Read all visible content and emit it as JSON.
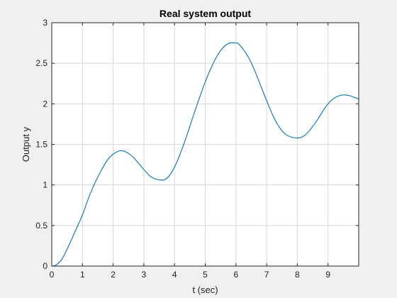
{
  "chart_data": {
    "type": "line",
    "title": "Real system output",
    "xlabel": "t (sec)",
    "ylabel": "Output y",
    "xlim": [
      0,
      10
    ],
    "ylim": [
      0,
      3
    ],
    "xticks": [
      0,
      1,
      2,
      3,
      4,
      5,
      6,
      7,
      8,
      9
    ],
    "yticks": [
      0,
      0.5,
      1,
      1.5,
      2,
      2.5,
      3
    ],
    "grid": true,
    "color": "#0072BD",
    "series": [
      {
        "x": [
          0,
          0.1,
          0.2,
          0.3,
          0.4,
          0.6,
          0.8,
          1.0,
          1.2,
          1.4,
          1.6,
          1.8,
          2.0,
          2.2,
          2.3,
          2.4,
          2.6,
          2.8,
          3.0,
          3.2,
          3.4,
          3.6,
          3.65,
          3.8,
          4.0,
          4.2,
          4.4,
          4.6,
          4.8,
          5.0,
          5.2,
          5.4,
          5.6,
          5.8,
          6.0,
          6.05,
          6.2,
          6.4,
          6.6,
          6.8,
          7.0,
          7.2,
          7.4,
          7.6,
          7.8,
          8.0,
          8.15,
          8.3,
          8.5,
          8.7,
          8.9,
          9.1,
          9.3,
          9.5,
          9.7,
          9.85,
          10.0
        ],
        "y": [
          0,
          0.005,
          0.03,
          0.07,
          0.13,
          0.29,
          0.46,
          0.63,
          0.84,
          1.02,
          1.17,
          1.3,
          1.38,
          1.42,
          1.42,
          1.41,
          1.36,
          1.28,
          1.19,
          1.11,
          1.07,
          1.06,
          1.06,
          1.1,
          1.22,
          1.4,
          1.61,
          1.84,
          2.06,
          2.27,
          2.45,
          2.6,
          2.7,
          2.75,
          2.75,
          2.75,
          2.69,
          2.58,
          2.42,
          2.23,
          2.04,
          1.86,
          1.72,
          1.63,
          1.59,
          1.58,
          1.59,
          1.63,
          1.72,
          1.83,
          1.95,
          2.04,
          2.09,
          2.11,
          2.1,
          2.08,
          2.06
        ]
      }
    ]
  }
}
